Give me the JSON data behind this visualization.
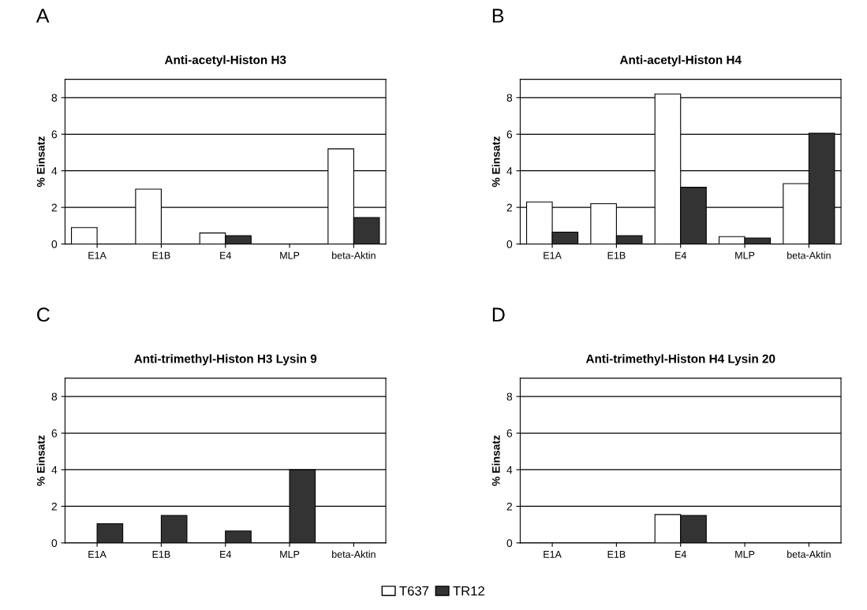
{
  "chart_data": [
    {
      "type": "bar",
      "title": "Anti-acetyl-Histon H3",
      "ylabel": "% Einsatz",
      "annotations": [
        "A"
      ],
      "categories": [
        "E1A",
        "E1B",
        "E4",
        "MLP",
        "beta-Aktin"
      ],
      "ylim": [
        0,
        9
      ],
      "yticks": [
        0,
        2,
        4,
        6,
        8
      ],
      "grid": "y",
      "legend": "bottom",
      "series": [
        {
          "name": "T637",
          "color": "#ffffff",
          "values": [
            0.9,
            3.0,
            0.6,
            0,
            5.2
          ]
        },
        {
          "name": "TR12",
          "color": "#333333",
          "values": [
            0,
            0,
            0.45,
            0,
            1.45
          ]
        }
      ]
    },
    {
      "type": "bar",
      "title": "Anti-acetyl-Histon H4",
      "ylabel": "% Einsatz",
      "annotations": [
        "B"
      ],
      "categories": [
        "E1A",
        "E1B",
        "E4",
        "MLP",
        "beta-Aktin"
      ],
      "ylim": [
        0,
        9
      ],
      "yticks": [
        0,
        2,
        4,
        6,
        8
      ],
      "grid": "y",
      "series": [
        {
          "color": "#ffffff",
          "values": [
            2.3,
            2.2,
            8.2,
            0.4,
            3.3
          ]
        },
        {
          "color": "#333333",
          "values": [
            0.65,
            0.45,
            3.1,
            0.33,
            6.05
          ]
        }
      ]
    },
    {
      "type": "bar",
      "title": "Anti-trimethyl-Histon H3 Lysin 9",
      "ylabel": "% Einsatz",
      "annotations": [
        "C"
      ],
      "categories": [
        "E1A",
        "E1B",
        "E4",
        "MLP",
        "beta-Aktin"
      ],
      "ylim": [
        0,
        9
      ],
      "yticks": [
        0,
        2,
        4,
        6,
        8
      ],
      "grid": "y",
      "series": [
        {
          "color": "#ffffff",
          "values": [
            0,
            0,
            0,
            0,
            0
          ]
        },
        {
          "color": "#333333",
          "values": [
            1.05,
            1.5,
            0.65,
            4.0,
            0
          ]
        }
      ]
    },
    {
      "type": "bar",
      "title": "Anti-trimethyl-Histon H4 Lysin 20",
      "ylabel": "% Einsatz",
      "annotations": [
        "D"
      ],
      "categories": [
        "E1A",
        "E1B",
        "E4",
        "MLP",
        "beta-Aktin"
      ],
      "ylim": [
        0,
        9
      ],
      "yticks": [
        0,
        2,
        4,
        6,
        8
      ],
      "grid": "y",
      "series": [
        {
          "color": "#ffffff",
          "values": [
            0,
            0,
            1.55,
            0,
            0
          ]
        },
        {
          "color": "#333333",
          "values": [
            0,
            0,
            1.5,
            0,
            0
          ]
        }
      ]
    }
  ]
}
